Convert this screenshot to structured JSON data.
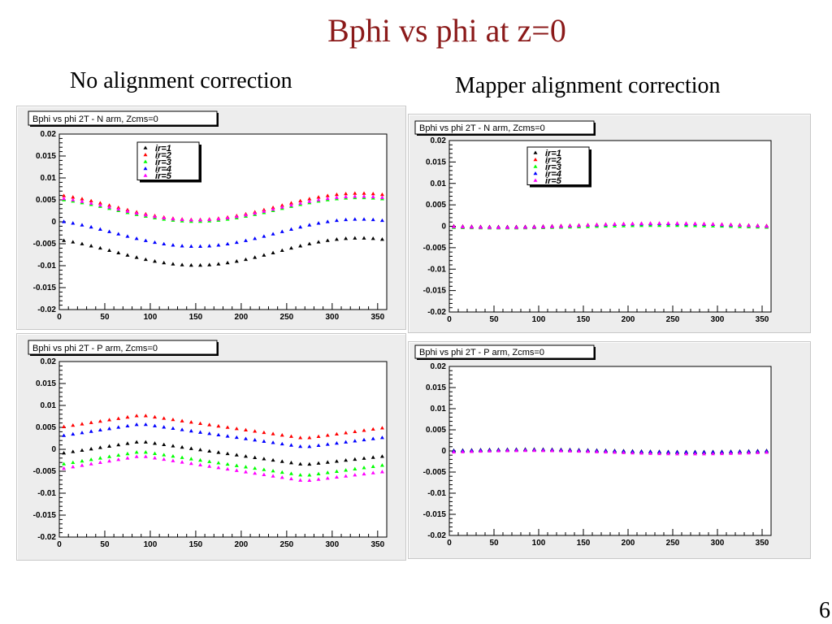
{
  "slide": {
    "title": "Bphi vs phi at z=0",
    "left_heading": "No alignment correction",
    "right_heading": "Mapper alignment correction",
    "page_number": "6"
  },
  "colors": {
    "title": "#8b1a1a",
    "ir1": "#000000",
    "ir2": "#ff0000",
    "ir3": "#00ff00",
    "ir4": "#0000ff",
    "ir5": "#ff00ff"
  },
  "chart_data": [
    {
      "type": "scatter",
      "title": "Bphi vs phi 2T - N arm, Zcms=0",
      "xlim": [
        0,
        360
      ],
      "ylim": [
        -0.02,
        0.02
      ],
      "x_ticks": [
        "0",
        "50",
        "100",
        "150",
        "200",
        "250",
        "300",
        "350"
      ],
      "y_ticks": [
        "0.02",
        "0.015",
        "0.01",
        "0.005",
        "0",
        "-0.005",
        "-0.01",
        "-0.015",
        "-0.02"
      ],
      "legend": {
        "entries": [
          "ir=1",
          "ir=2",
          "ir=3",
          "ir=4",
          "ir=5"
        ],
        "placement": "top-center"
      },
      "model": "y = c + a*cos((phi - 330) * pi/180), phi = 5..355 step 10",
      "series": [
        {
          "name": "ir=1",
          "color": "#000000",
          "params": {
            "c": -0.0068,
            "a": 0.0031,
            "phase": 330
          }
        },
        {
          "name": "ir=2",
          "color": "#ff0000",
          "params": {
            "c": 0.0035,
            "a": 0.003,
            "phase": 330
          }
        },
        {
          "name": "ir=3",
          "color": "#00ff00",
          "params": {
            "c": 0.0028,
            "a": 0.0027,
            "phase": 330
          }
        },
        {
          "name": "ir=4",
          "color": "#0000ff",
          "params": {
            "c": -0.0025,
            "a": 0.0031,
            "phase": 330
          }
        },
        {
          "name": "ir=5",
          "color": "#ff00ff",
          "params": {
            "c": 0.0031,
            "a": 0.0027,
            "phase": 330
          }
        }
      ]
    },
    {
      "type": "scatter",
      "title": "Bphi vs phi 2T - P arm, Zcms=0",
      "xlim": [
        0,
        360
      ],
      "ylim": [
        -0.02,
        0.02
      ],
      "x_ticks": [
        "0",
        "50",
        "100",
        "150",
        "200",
        "250",
        "300",
        "350"
      ],
      "y_ticks": [
        "0.02",
        "0.015",
        "0.01",
        "0.005",
        "0",
        "-0.005",
        "-0.01",
        "-0.015",
        "-0.02"
      ],
      "model": "piecewise linear through phi knots",
      "knots_phi": [
        0,
        90,
        270,
        360
      ],
      "series": [
        {
          "name": "ir=1",
          "color": "#000000",
          "knots_y": [
            -0.001,
            0.0018,
            -0.0035,
            -0.0015
          ]
        },
        {
          "name": "ir=2",
          "color": "#ff0000",
          "knots_y": [
            0.005,
            0.0078,
            0.0025,
            0.005
          ]
        },
        {
          "name": "ir=3",
          "color": "#00ff00",
          "knots_y": [
            -0.0035,
            -0.0005,
            -0.006,
            -0.0035
          ]
        },
        {
          "name": "ir=4",
          "color": "#0000ff",
          "knots_y": [
            0.003,
            0.0058,
            0.0005,
            0.0028
          ]
        },
        {
          "name": "ir=5",
          "color": "#ff00ff",
          "knots_y": [
            -0.0045,
            -0.0015,
            -0.0072,
            -0.005
          ]
        }
      ]
    },
    {
      "type": "scatter",
      "title": "Bphi vs phi 2T - N arm, Zcms=0",
      "xlim": [
        0,
        360
      ],
      "ylim": [
        -0.02,
        0.02
      ],
      "x_ticks": [
        "0",
        "50",
        "100",
        "150",
        "200",
        "250",
        "300",
        "350"
      ],
      "y_ticks": [
        "0.02",
        "0.015",
        "0.01",
        "0.005",
        "0",
        "-0.005",
        "-0.01",
        "-0.015",
        "-0.02"
      ],
      "legend": {
        "entries": [
          "ir=1",
          "ir=2",
          "ir=3",
          "ir=4",
          "ir=5"
        ],
        "placement": "top-center"
      },
      "model": "y = c + a*cos((phi - 240) * pi/180), phi = 5..355 step 10",
      "series": [
        {
          "name": "ir=1",
          "color": "#000000",
          "params": {
            "c": 0.0002,
            "a": 0.0004,
            "phase": 240
          }
        },
        {
          "name": "ir=2",
          "color": "#ff0000",
          "params": {
            "c": 0.0003,
            "a": 0.0004,
            "phase": 240
          }
        },
        {
          "name": "ir=3",
          "color": "#00ff00",
          "params": {
            "c": -0.0001,
            "a": 0.0003,
            "phase": 240
          }
        },
        {
          "name": "ir=4",
          "color": "#0000ff",
          "params": {
            "c": 0.0002,
            "a": 0.0004,
            "phase": 240
          }
        },
        {
          "name": "ir=5",
          "color": "#ff00ff",
          "params": {
            "c": 0.0002,
            "a": 0.0005,
            "phase": 240
          }
        }
      ]
    },
    {
      "type": "scatter",
      "title": "Bphi vs phi 2T - P arm, Zcms=0",
      "xlim": [
        0,
        360
      ],
      "ylim": [
        -0.02,
        0.02
      ],
      "x_ticks": [
        "0",
        "50",
        "100",
        "150",
        "200",
        "250",
        "300",
        "350"
      ],
      "y_ticks": [
        "0.02",
        "0.015",
        "0.01",
        "0.005",
        "0",
        "-0.005",
        "-0.01",
        "-0.015",
        "-0.02"
      ],
      "model": "y = c + a*cos((phi - 90) * pi/180), phi = 5..355 step 10",
      "series": [
        {
          "name": "ir=1",
          "color": "#000000",
          "params": {
            "c": 0.0001,
            "a": 0.0003,
            "phase": 90
          }
        },
        {
          "name": "ir=2",
          "color": "#ff0000",
          "params": {
            "c": -0.0001,
            "a": 0.0003,
            "phase": 90
          }
        },
        {
          "name": "ir=3",
          "color": "#00ff00",
          "params": {
            "c": -0.0001,
            "a": 0.0003,
            "phase": 90
          }
        },
        {
          "name": "ir=4",
          "color": "#0000ff",
          "params": {
            "c": 0.0,
            "a": 0.0003,
            "phase": 90
          }
        },
        {
          "name": "ir=5",
          "color": "#ff00ff",
          "params": {
            "c": -0.0003,
            "a": 0.0004,
            "phase": 90
          }
        }
      ]
    }
  ]
}
